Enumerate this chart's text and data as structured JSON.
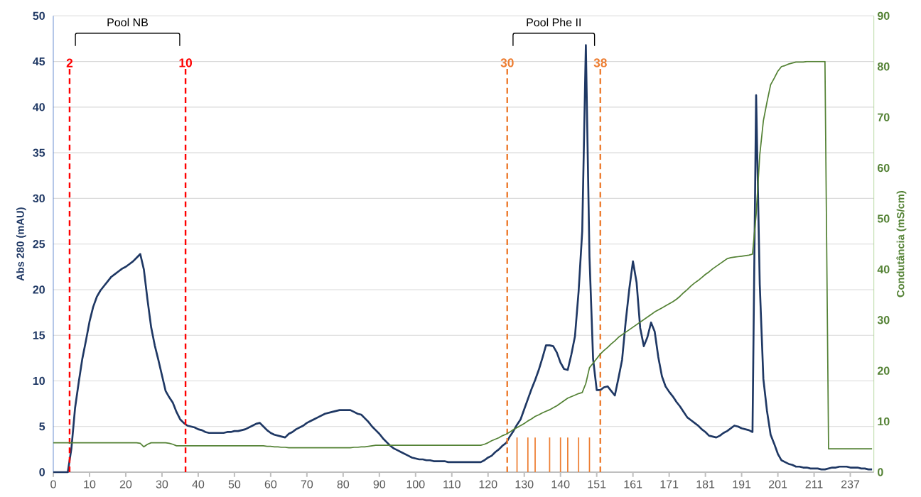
{
  "chart_data": {
    "type": "line",
    "ylabel": "Abs 280 (mAU)",
    "y2label": "Condutância (mS/cm)",
    "categories": [
      "0",
      null,
      null,
      null,
      null,
      null,
      null,
      null,
      null,
      null,
      "10",
      null,
      null,
      null,
      null,
      null,
      null,
      null,
      null,
      null,
      "20",
      null,
      null,
      null,
      null,
      null,
      null,
      null,
      null,
      null,
      "30",
      null,
      null,
      null,
      null,
      null,
      null,
      null,
      null,
      null,
      "40",
      null,
      null,
      null,
      null,
      null,
      null,
      null,
      null,
      null,
      "50",
      null,
      null,
      null,
      null,
      null,
      null,
      null,
      null,
      null,
      "60",
      null,
      null,
      null,
      null,
      null,
      null,
      null,
      null,
      null,
      "70",
      null,
      null,
      null,
      null,
      null,
      null,
      null,
      null,
      null,
      "80",
      null,
      null,
      null,
      null,
      null,
      null,
      null,
      null,
      null,
      "90",
      null,
      null,
      null,
      null,
      null,
      null,
      null,
      null,
      null,
      "100",
      null,
      null,
      null,
      null,
      null,
      null,
      null,
      null,
      null,
      "110",
      null,
      null,
      null,
      null,
      null,
      null,
      null,
      null,
      null,
      "120",
      null,
      null,
      null,
      null,
      null,
      null,
      null,
      null,
      null,
      "130",
      null,
      null,
      null,
      null,
      null,
      null,
      null,
      null,
      null,
      "140",
      null,
      null,
      null,
      null,
      null,
      null,
      null,
      null,
      null,
      "151",
      null,
      null,
      null,
      null,
      null,
      null,
      null,
      null,
      null,
      "161",
      null,
      null,
      null,
      null,
      null,
      null,
      null,
      null,
      null,
      "171",
      null,
      null,
      null,
      null,
      null,
      null,
      null,
      null,
      null,
      "181",
      null,
      null,
      null,
      null,
      null,
      null,
      null,
      null,
      null,
      "191",
      null,
      null,
      null,
      null,
      null,
      null,
      null,
      null,
      null,
      "201",
      null,
      null,
      null,
      null,
      null,
      null,
      null,
      null,
      null,
      "211",
      null,
      null,
      null,
      null,
      null,
      null,
      null,
      null,
      null,
      "237",
      null,
      null,
      null,
      null,
      null,
      null
    ],
    "ylim": [
      0,
      50
    ],
    "yticks": [
      0,
      5,
      10,
      15,
      20,
      25,
      30,
      35,
      40,
      45,
      50
    ],
    "y2lim": [
      0,
      90
    ],
    "y2ticks": [
      0,
      10,
      20,
      30,
      40,
      50,
      60,
      70,
      80,
      90
    ],
    "grid": "y",
    "series": [
      {
        "color": "#1f3864",
        "values": [
          0,
          0,
          0,
          0,
          0,
          2.6,
          7.0,
          9.8,
          12.4,
          14.4,
          16.5,
          18.1,
          19.2,
          19.9,
          20.4,
          20.9,
          21.4,
          21.7,
          22.0,
          22.3,
          22.5,
          22.8,
          23.1,
          23.5,
          23.9,
          22.2,
          18.9,
          15.9,
          13.9,
          12.3,
          10.6,
          8.9,
          8.2,
          7.6,
          6.6,
          5.8,
          5.4,
          5.1,
          5.0,
          4.9,
          4.7,
          4.6,
          4.4,
          4.3,
          4.3,
          4.3,
          4.3,
          4.3,
          4.4,
          4.4,
          4.5,
          4.5,
          4.6,
          4.7,
          4.9,
          5.1,
          5.3,
          5.4,
          5.0,
          4.6,
          4.3,
          4.1,
          4.0,
          3.9,
          3.8,
          4.2,
          4.4,
          4.7,
          4.9,
          5.1,
          5.4,
          5.6,
          5.8,
          6.0,
          6.2,
          6.4,
          6.5,
          6.6,
          6.7,
          6.8,
          6.8,
          6.8,
          6.8,
          6.6,
          6.4,
          6.3,
          5.9,
          5.5,
          5.0,
          4.6,
          4.2,
          3.7,
          3.3,
          2.9,
          2.6,
          2.4,
          2.2,
          2.0,
          1.8,
          1.6,
          1.5,
          1.4,
          1.4,
          1.3,
          1.3,
          1.2,
          1.2,
          1.2,
          1.2,
          1.1,
          1.1,
          1.1,
          1.1,
          1.1,
          1.1,
          1.1,
          1.1,
          1.1,
          1.1,
          1.3,
          1.6,
          1.8,
          2.2,
          2.5,
          2.9,
          3.2,
          3.9,
          4.5,
          5.2,
          5.8,
          6.9,
          8.0,
          9.1,
          10.1,
          11.2,
          12.5,
          13.9,
          13.9,
          13.8,
          13.1,
          12.0,
          11.3,
          11.2,
          12.9,
          14.9,
          19.8,
          26.4,
          46.8,
          23.6,
          12.4,
          9.0,
          9.0,
          9.3,
          9.4,
          8.9,
          8.4,
          10.3,
          12.3,
          16.5,
          20.1,
          23.1,
          20.8,
          15.8,
          13.8,
          14.8,
          16.4,
          15.4,
          12.6,
          10.5,
          9.4,
          8.8,
          8.3,
          7.7,
          7.2,
          6.6,
          6.0,
          5.7,
          5.4,
          5.1,
          4.7,
          4.4,
          4.0,
          3.9,
          3.8,
          4.0,
          4.3,
          4.5,
          4.8,
          5.1,
          5.0,
          4.8,
          4.7,
          4.6,
          4.4,
          41.3,
          20.6,
          10.2,
          6.7,
          4.1,
          3.1,
          2.0,
          1.3,
          1.1,
          0.9,
          0.8,
          0.6,
          0.6,
          0.5,
          0.5,
          0.4,
          0.4,
          0.4,
          0.3,
          0.3,
          0.4,
          0.5,
          0.5,
          0.6,
          0.6,
          0.6,
          0.5,
          0.5,
          0.5,
          0.4,
          0.4,
          0.3,
          0.3
        ]
      },
      {
        "axis": "y2",
        "color": "#548235",
        "values": [
          5.8,
          5.8,
          5.8,
          5.8,
          5.8,
          5.8,
          5.8,
          5.8,
          5.8,
          5.8,
          5.8,
          5.8,
          5.8,
          5.8,
          5.8,
          5.8,
          5.8,
          5.8,
          5.8,
          5.8,
          5.8,
          5.8,
          5.8,
          5.8,
          5.7,
          5.0,
          5.5,
          5.8,
          5.8,
          5.8,
          5.8,
          5.8,
          5.7,
          5.5,
          5.2,
          5.2,
          5.2,
          5.2,
          5.2,
          5.2,
          5.2,
          5.2,
          5.2,
          5.2,
          5.2,
          5.2,
          5.2,
          5.2,
          5.2,
          5.2,
          5.2,
          5.2,
          5.2,
          5.2,
          5.2,
          5.2,
          5.2,
          5.2,
          5.2,
          5.1,
          5.1,
          5.0,
          5.0,
          4.9,
          4.9,
          4.8,
          4.8,
          4.8,
          4.8,
          4.8,
          4.8,
          4.8,
          4.8,
          4.8,
          4.8,
          4.8,
          4.8,
          4.8,
          4.8,
          4.8,
          4.8,
          4.8,
          4.8,
          4.9,
          4.9,
          5.0,
          5.0,
          5.1,
          5.2,
          5.3,
          5.3,
          5.3,
          5.3,
          5.3,
          5.3,
          5.3,
          5.3,
          5.3,
          5.3,
          5.3,
          5.3,
          5.3,
          5.3,
          5.3,
          5.3,
          5.3,
          5.3,
          5.3,
          5.3,
          5.3,
          5.3,
          5.3,
          5.3,
          5.3,
          5.3,
          5.3,
          5.3,
          5.3,
          5.3,
          5.5,
          5.8,
          6.2,
          6.5,
          6.8,
          7.2,
          7.5,
          7.9,
          8.4,
          8.8,
          9.2,
          9.6,
          10.1,
          10.5,
          11.0,
          11.3,
          11.7,
          12.0,
          12.3,
          12.7,
          13.1,
          13.6,
          14.1,
          14.6,
          14.9,
          15.2,
          15.5,
          15.7,
          17.5,
          20.6,
          21.5,
          22.4,
          23.3,
          24.0,
          24.6,
          25.3,
          25.9,
          26.6,
          27.1,
          27.6,
          28.1,
          28.6,
          29.1,
          29.6,
          30.1,
          30.6,
          31.1,
          31.6,
          32.0,
          32.4,
          32.8,
          33.2,
          33.6,
          34.1,
          34.7,
          35.4,
          36.0,
          36.7,
          37.3,
          37.8,
          38.4,
          39.0,
          39.5,
          40.1,
          40.6,
          41.1,
          41.6,
          42.1,
          42.3,
          42.4,
          42.5,
          42.6,
          42.7,
          42.8,
          43.0,
          50.8,
          62.5,
          69.3,
          73.0,
          76.4,
          77.7,
          79.1,
          80.0,
          80.2,
          80.5,
          80.7,
          80.9,
          80.9,
          80.9,
          81.0,
          81.0,
          81.0,
          81.0,
          81.0,
          81.0,
          4.6,
          4.6,
          4.6,
          4.6,
          4.6,
          4.6,
          4.6,
          4.6,
          4.6,
          4.6,
          4.6,
          4.6,
          4.6
        ]
      },
      {
        "type": "bar",
        "color": "#ed7d31",
        "values": [
          null,
          null,
          null,
          null,
          null,
          null,
          null,
          null,
          null,
          null,
          null,
          null,
          null,
          null,
          null,
          null,
          null,
          null,
          null,
          null,
          null,
          null,
          null,
          null,
          null,
          null,
          null,
          null,
          null,
          null,
          null,
          null,
          null,
          null,
          null,
          null,
          null,
          null,
          null,
          null,
          null,
          null,
          null,
          null,
          null,
          null,
          null,
          null,
          null,
          null,
          null,
          null,
          null,
          null,
          null,
          null,
          null,
          null,
          null,
          null,
          null,
          null,
          null,
          null,
          null,
          null,
          null,
          null,
          null,
          null,
          null,
          null,
          null,
          null,
          null,
          null,
          null,
          null,
          null,
          null,
          null,
          null,
          null,
          null,
          null,
          null,
          null,
          null,
          null,
          null,
          null,
          null,
          null,
          null,
          null,
          null,
          null,
          null,
          null,
          null,
          null,
          null,
          null,
          null,
          null,
          null,
          null,
          null,
          null,
          null,
          null,
          null,
          null,
          null,
          null,
          null,
          null,
          null,
          null,
          null,
          null,
          null,
          null,
          null,
          null,
          null,
          null,
          null,
          3.8,
          null,
          null,
          3.8,
          null,
          3.8,
          null,
          null,
          null,
          3.8,
          null,
          null,
          3.8,
          null,
          3.8,
          null,
          null,
          3.8,
          null,
          null,
          3.8,
          null,
          null,
          null,
          null,
          null,
          null,
          null,
          null,
          null,
          null,
          null,
          null,
          null,
          null,
          null,
          null,
          null,
          null,
          null,
          null,
          null,
          null,
          null,
          null,
          null,
          null,
          null,
          null,
          null,
          null,
          null,
          null,
          null,
          null,
          null,
          null,
          null,
          null,
          null,
          null,
          null,
          null,
          null,
          null,
          null,
          null,
          null,
          null,
          null,
          null,
          null,
          null,
          null,
          null,
          null,
          null,
          null,
          null,
          null,
          null,
          null,
          null,
          null,
          null,
          null,
          null,
          null,
          null,
          null,
          null,
          null,
          null,
          null,
          null,
          null,
          null,
          null,
          null
        ]
      }
    ],
    "annotations": [
      "Pool NB",
      "Pool Phe II",
      "2",
      "10",
      "30",
      "38"
    ]
  }
}
